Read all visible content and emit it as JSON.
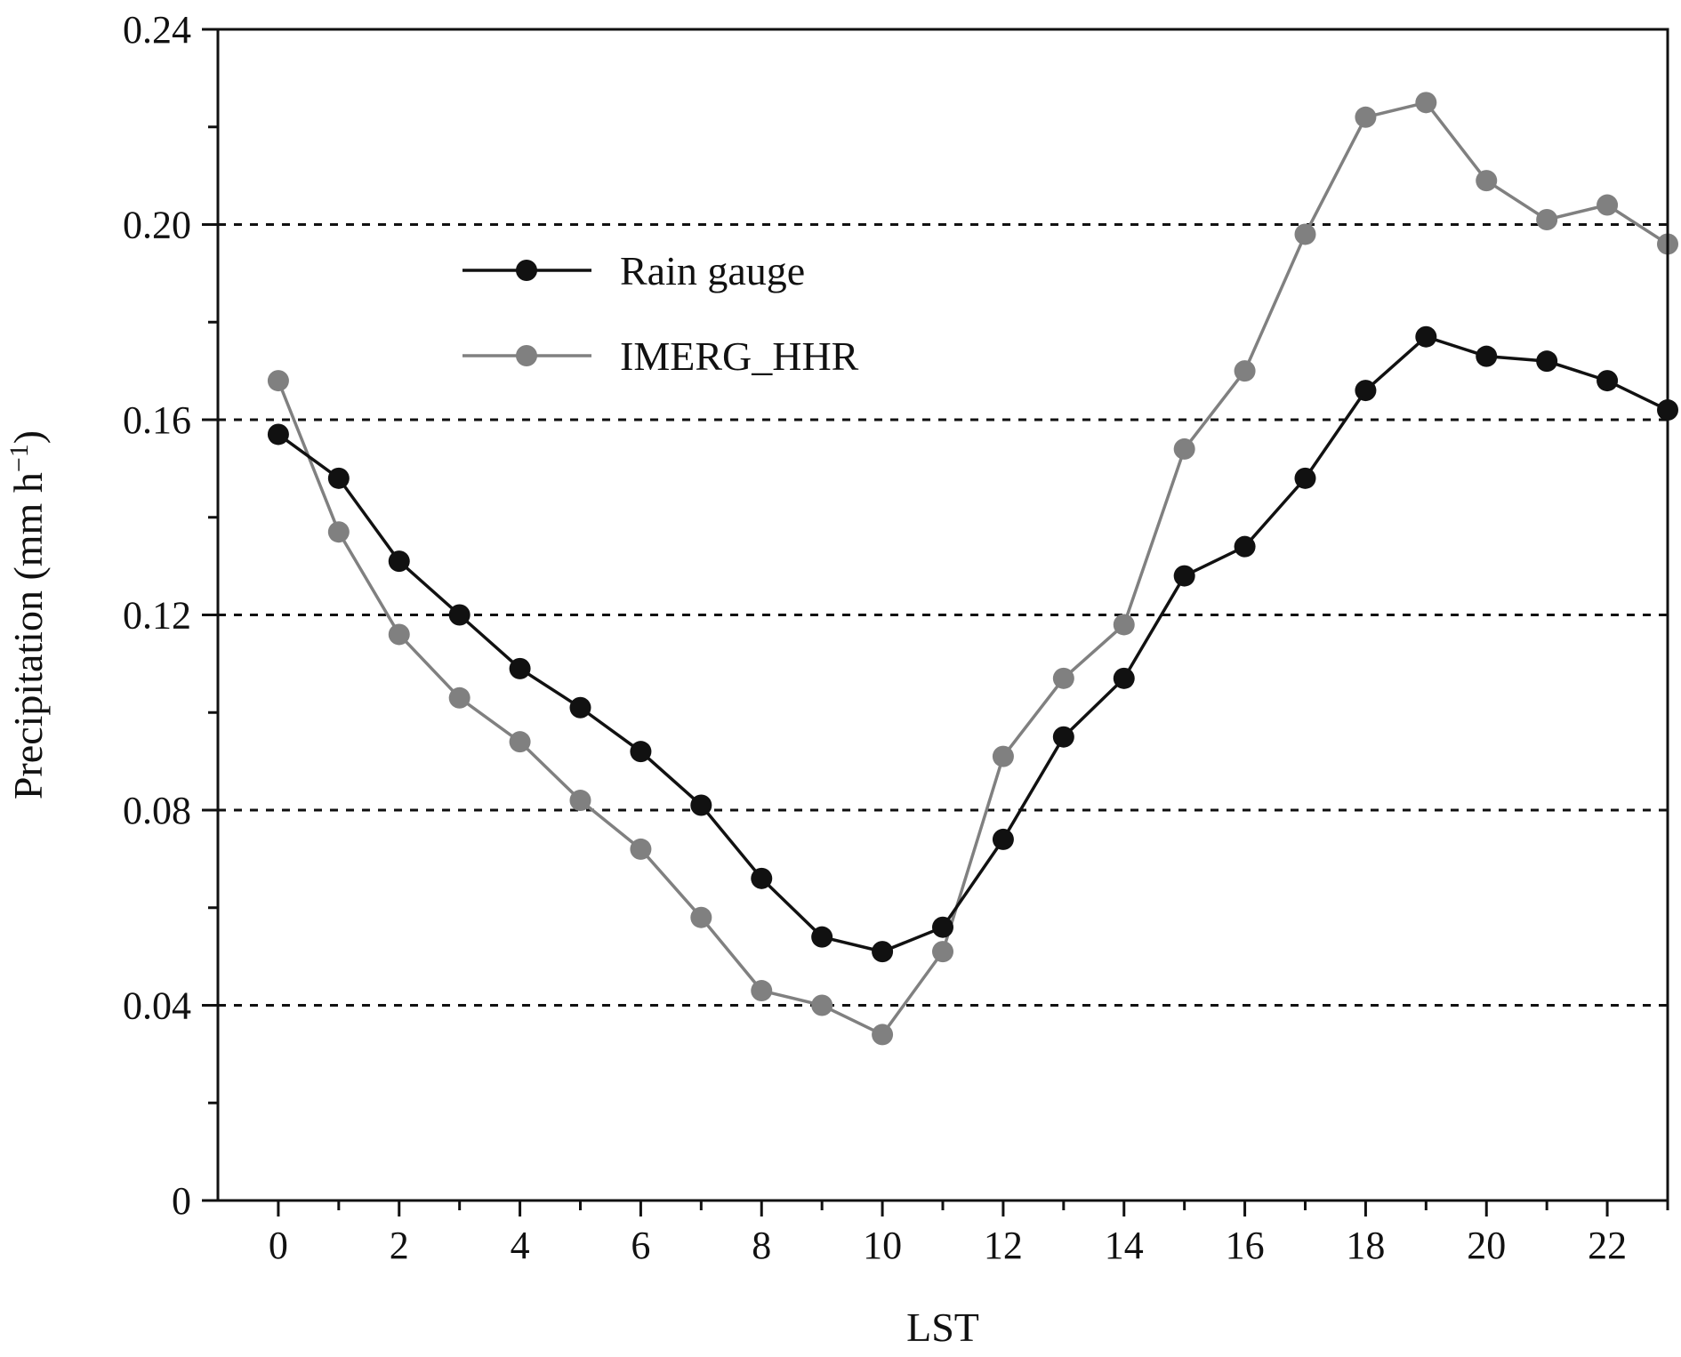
{
  "chart_data": {
    "type": "line",
    "title": "",
    "xlabel": "LST",
    "ylabel": "Precipitation (mm h",
    "ylabel_sup": "−1",
    "ylabel_close": ")",
    "xlim": [
      -1,
      23
    ],
    "ylim": [
      0,
      0.24
    ],
    "x_ticks": [
      0,
      2,
      4,
      6,
      8,
      10,
      12,
      14,
      16,
      18,
      20,
      22
    ],
    "x_tick_labels": [
      "0",
      "2",
      "4",
      "6",
      "8",
      "10",
      "12",
      "14",
      "16",
      "18",
      "20",
      "22"
    ],
    "y_ticks": [
      0,
      0.04,
      0.08,
      0.12,
      0.16,
      0.2,
      0.24
    ],
    "y_tick_labels": [
      "0",
      "0.04",
      "0.08",
      "0.12",
      "0.16",
      "0.20",
      "0.24"
    ],
    "grid": "horizontal dashed at 0.04, 0.08, 0.12, 0.16, 0.20",
    "legend_position": "top-left",
    "x": [
      0,
      1,
      2,
      3,
      4,
      5,
      6,
      7,
      8,
      9,
      10,
      11,
      12,
      13,
      14,
      15,
      16,
      17,
      18,
      19,
      20,
      21,
      22,
      23
    ],
    "series": [
      {
        "name": "Rain gauge",
        "color": "#111111",
        "values": [
          0.157,
          0.148,
          0.131,
          0.12,
          0.109,
          0.101,
          0.092,
          0.081,
          0.066,
          0.054,
          0.051,
          0.056,
          0.074,
          0.095,
          0.107,
          0.128,
          0.134,
          0.148,
          0.166,
          0.177,
          0.173,
          0.172,
          0.168,
          0.162
        ]
      },
      {
        "name": "IMERG_HHR",
        "color": "#808080",
        "values": [
          0.168,
          0.137,
          0.116,
          0.103,
          0.094,
          0.082,
          0.072,
          0.058,
          0.043,
          0.04,
          0.034,
          0.051,
          0.091,
          0.107,
          0.118,
          0.154,
          0.17,
          0.198,
          0.222,
          0.225,
          0.209,
          0.201,
          0.204,
          0.196
        ]
      }
    ]
  }
}
